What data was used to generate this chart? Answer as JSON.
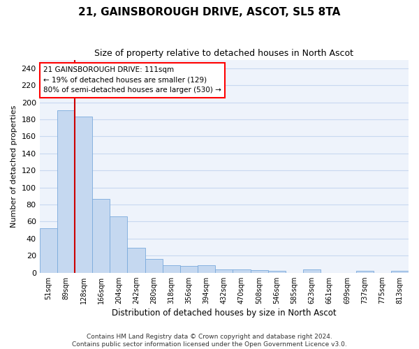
{
  "title": "21, GAINSBOROUGH DRIVE, ASCOT, SL5 8TA",
  "subtitle": "Size of property relative to detached houses in North Ascot",
  "xlabel": "Distribution of detached houses by size in North Ascot",
  "ylabel": "Number of detached properties",
  "categories": [
    "51sqm",
    "89sqm",
    "128sqm",
    "166sqm",
    "204sqm",
    "242sqm",
    "280sqm",
    "318sqm",
    "356sqm",
    "394sqm",
    "432sqm",
    "470sqm",
    "508sqm",
    "546sqm",
    "585sqm",
    "623sqm",
    "661sqm",
    "699sqm",
    "737sqm",
    "775sqm",
    "813sqm"
  ],
  "values": [
    52,
    191,
    183,
    87,
    66,
    29,
    16,
    9,
    8,
    9,
    4,
    4,
    3,
    2,
    0,
    4,
    0,
    0,
    2,
    0,
    2
  ],
  "bar_color": "#c5d8f0",
  "bar_edge_color": "#7aaadc",
  "grid_color": "#c8d8f0",
  "background_color": "#eef3fb",
  "annotation_line1": "21 GAINSBOROUGH DRIVE: 111sqm",
  "annotation_line2": "← 19% of detached houses are smaller (129)",
  "annotation_line3": "80% of semi-detached houses are larger (530) →",
  "annotation_box_color": "white",
  "annotation_box_edge": "red",
  "red_line_color": "#cc0000",
  "ylim": [
    0,
    250
  ],
  "yticks": [
    0,
    20,
    40,
    60,
    80,
    100,
    120,
    140,
    160,
    180,
    200,
    220,
    240
  ],
  "footer1": "Contains HM Land Registry data © Crown copyright and database right 2024.",
  "footer2": "Contains public sector information licensed under the Open Government Licence v3.0."
}
